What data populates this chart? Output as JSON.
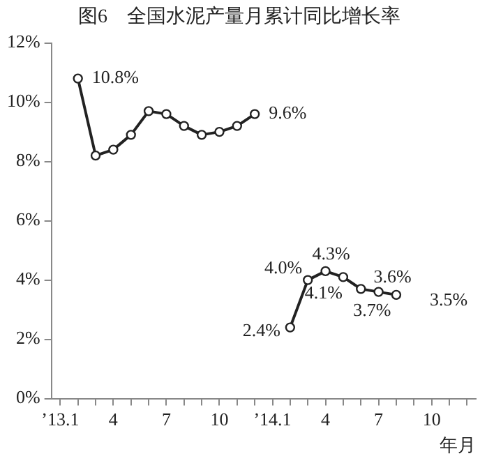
{
  "chart_data": {
    "type": "line",
    "title": "图6　全国水泥产量月累计同比增长率",
    "xlabel": "年月",
    "categories": [
      "’13.1",
      null,
      null,
      "4",
      null,
      null,
      "7",
      null,
      null,
      "10",
      null,
      null,
      "’14.1",
      null,
      null,
      "4",
      null,
      null,
      "7",
      null,
      null,
      "10",
      null,
      null
    ],
    "series": [
      {
        "color": "#222222",
        "values": [
          null,
          10.8,
          8.2,
          8.4,
          8.9,
          9.7,
          9.6,
          9.2,
          8.9,
          9.0,
          9.2,
          9.6,
          null,
          2.4,
          4.0,
          4.3,
          4.1,
          3.7,
          3.6,
          3.5,
          null,
          null,
          null,
          null
        ],
        "value_labels": [
          null,
          "10.8%",
          null,
          null,
          null,
          null,
          null,
          null,
          null,
          null,
          null,
          "9.6%",
          null,
          "2.4%",
          "4.0%",
          "4.3%",
          "4.1%",
          "3.7%",
          "3.6%",
          "3.5%",
          null,
          null,
          null,
          null
        ]
      }
    ],
    "ylim": [
      0,
      12
    ],
    "yticks": [
      {
        "value": 0,
        "label": "0%"
      },
      {
        "value": 2,
        "label": "2%"
      },
      {
        "value": 4,
        "label": "4%"
      },
      {
        "value": 6,
        "label": "6%"
      },
      {
        "value": 8,
        "label": "8%"
      },
      {
        "value": 10,
        "label": "10%"
      },
      {
        "value": 12,
        "label": "12%"
      }
    ],
    "grid": false,
    "legend": false,
    "marker": "circle",
    "line_style": "solid"
  }
}
